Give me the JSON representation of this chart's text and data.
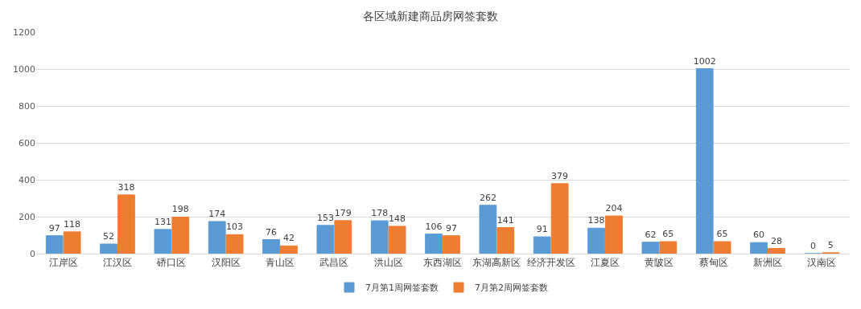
{
  "chart_data": {
    "type": "bar",
    "title": "各区域新建商品房网签套数",
    "categories": [
      "江岸区",
      "江汉区",
      "硚口区",
      "汉阳区",
      "青山区",
      "武昌区",
      "洪山区",
      "东西湖区",
      "东湖高新区",
      "经济开发区",
      "江夏区",
      "黄陂区",
      "蔡甸区",
      "新洲区",
      "汉南区"
    ],
    "series": [
      {
        "name": "7月第1周网签套数",
        "color": "#5b9bd5",
        "values": [
          97,
          52,
          131,
          174,
          76,
          153,
          178,
          106,
          262,
          91,
          138,
          62,
          1002,
          60,
          0
        ]
      },
      {
        "name": "7月第2周网签套数",
        "color": "#ed7d31",
        "values": [
          118,
          318,
          198,
          103,
          42,
          179,
          148,
          97,
          141,
          379,
          204,
          65,
          65,
          28,
          5
        ]
      }
    ],
    "ylim": [
      0,
      1200
    ],
    "yticks": [
      0,
      200,
      400,
      600,
      800,
      1000,
      1200
    ],
    "grid": "y",
    "legend": "bottom",
    "data_labels": true
  }
}
